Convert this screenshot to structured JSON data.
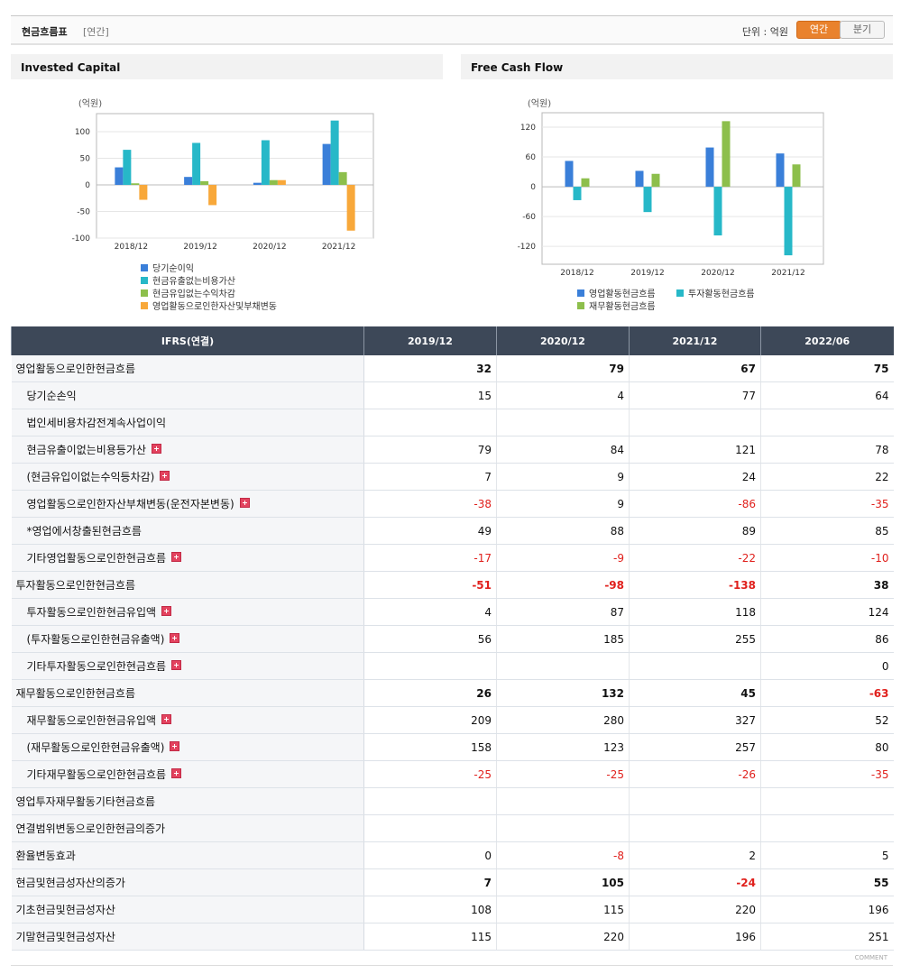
{
  "header": {
    "title": "현금흐름표",
    "period": "[연간]",
    "unit": "단위 : 억원",
    "tabs": [
      "연간",
      "분기"
    ]
  },
  "chart_data": [
    {
      "type": "bar",
      "title": "Invested Capital",
      "ylabel": "(억원)",
      "categories": [
        "2018/12",
        "2019/12",
        "2020/12",
        "2021/12"
      ],
      "series": [
        {
          "name": "당기순이익",
          "color": "#3a7fd9",
          "values": [
            33,
            15,
            4,
            77
          ]
        },
        {
          "name": "현금유출없는비용가산",
          "color": "#27b8c8",
          "values": [
            66,
            79,
            84,
            121
          ]
        },
        {
          "name": "현금유입없는수익차감",
          "color": "#8dbf4c",
          "values": [
            3,
            7,
            9,
            24
          ]
        },
        {
          "name": "영업활동으로인한자산및부채변동",
          "color": "#f8a83a",
          "values": [
            -28,
            -38,
            9,
            -86
          ]
        }
      ],
      "ylim": [
        -100,
        134
      ],
      "yticks": [
        -100,
        -50,
        0,
        50,
        100
      ],
      "grid": true
    },
    {
      "type": "bar",
      "title": "Free Cash Flow",
      "ylabel": "(억원)",
      "categories": [
        "2018/12",
        "2019/12",
        "2020/12",
        "2021/12"
      ],
      "series": [
        {
          "name": "영업활동현금흐름",
          "color": "#3a7fd9",
          "values": [
            52,
            32,
            79,
            67
          ]
        },
        {
          "name": "투자활동현금흐름",
          "color": "#27b8c8",
          "values": [
            -27,
            -51,
            -98,
            -138
          ]
        },
        {
          "name": "재무활동현금흐름",
          "color": "#8dbf4c",
          "values": [
            17,
            26,
            132,
            45
          ]
        }
      ],
      "ylim": [
        -156,
        149
      ],
      "yticks": [
        -120,
        -60,
        0,
        60,
        120
      ],
      "grid": true
    }
  ],
  "table": {
    "columns": [
      "IFRS(연결)",
      "2019/12",
      "2020/12",
      "2021/12",
      "2022/06"
    ],
    "rows": [
      {
        "label": "영업활동으로인한현금흐름",
        "level": 0,
        "bold": true,
        "values": [
          32,
          79,
          67,
          75
        ]
      },
      {
        "label": "당기순손익",
        "level": 1,
        "values": [
          15,
          4,
          77,
          64
        ]
      },
      {
        "label": "법인세비용차감전계속사업이익",
        "level": 1,
        "values": [
          null,
          null,
          null,
          null
        ]
      },
      {
        "label": "현금유출이없는비용등가산",
        "level": 1,
        "expandable": true,
        "values": [
          79,
          84,
          121,
          78
        ]
      },
      {
        "label": "(현금유입이없는수익등차감)",
        "level": 1,
        "expandable": true,
        "values": [
          7,
          9,
          24,
          22
        ]
      },
      {
        "label": "영업활동으로인한자산부채변동(운전자본변동)",
        "level": 1,
        "expandable": true,
        "values": [
          -38,
          9,
          -86,
          -35
        ]
      },
      {
        "label": "*영업에서창출된현금흐름",
        "level": 1,
        "values": [
          49,
          88,
          89,
          85
        ]
      },
      {
        "label": "기타영업활동으로인한현금흐름",
        "level": 1,
        "expandable": true,
        "values": [
          -17,
          -9,
          -22,
          -10
        ]
      },
      {
        "label": "투자활동으로인한현금흐름",
        "level": 0,
        "bold": true,
        "values": [
          -51,
          -98,
          -138,
          38
        ]
      },
      {
        "label": "투자활동으로인한현금유입액",
        "level": 1,
        "expandable": true,
        "values": [
          4,
          87,
          118,
          124
        ]
      },
      {
        "label": "(투자활동으로인한현금유출액)",
        "level": 1,
        "expandable": true,
        "values": [
          56,
          185,
          255,
          86
        ]
      },
      {
        "label": "기타투자활동으로인한현금흐름",
        "level": 1,
        "expandable": true,
        "values": [
          null,
          null,
          null,
          0
        ]
      },
      {
        "label": "재무활동으로인한현금흐름",
        "level": 0,
        "bold": true,
        "values": [
          26,
          132,
          45,
          -63
        ]
      },
      {
        "label": "재무활동으로인한현금유입액",
        "level": 1,
        "expandable": true,
        "values": [
          209,
          280,
          327,
          52
        ]
      },
      {
        "label": "(재무활동으로인한현금유출액)",
        "level": 1,
        "expandable": true,
        "values": [
          158,
          123,
          257,
          80
        ]
      },
      {
        "label": "기타재무활동으로인한현금흐름",
        "level": 1,
        "expandable": true,
        "values": [
          -25,
          -25,
          -26,
          -35
        ]
      },
      {
        "label": "영업투자재무활동기타현금흐름",
        "level": 0,
        "values": [
          null,
          null,
          null,
          null
        ]
      },
      {
        "label": "연결범위변동으로인한현금의증가",
        "level": 0,
        "values": [
          null,
          null,
          null,
          null
        ]
      },
      {
        "label": "환율변동효과",
        "level": 0,
        "values": [
          0,
          -8,
          2,
          5
        ]
      },
      {
        "label": "현금및현금성자산의증가",
        "level": 0,
        "bold": true,
        "values": [
          7,
          105,
          -24,
          55
        ]
      },
      {
        "label": "기초현금및현금성자산",
        "level": 0,
        "values": [
          108,
          115,
          220,
          196
        ]
      },
      {
        "label": "기말현금및현금성자산",
        "level": 0,
        "values": [
          115,
          220,
          196,
          251
        ]
      }
    ]
  },
  "footer": {
    "comment": "COMMENT"
  }
}
